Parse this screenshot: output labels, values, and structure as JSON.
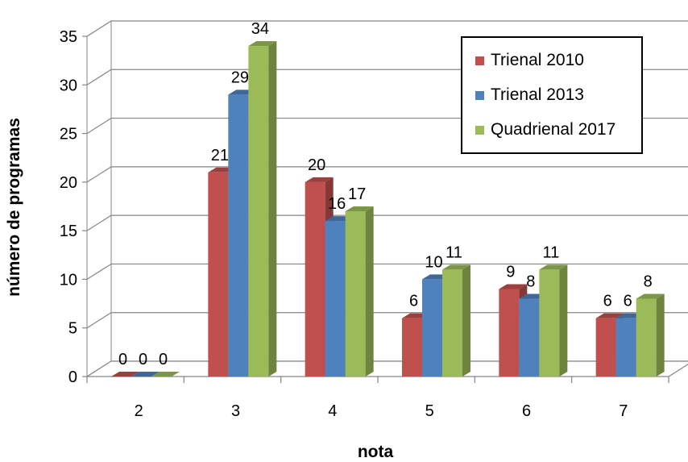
{
  "chart_data": {
    "type": "bar",
    "xlabel": "nota",
    "ylabel": "número de programas",
    "categories": [
      "2",
      "3",
      "4",
      "5",
      "6",
      "7"
    ],
    "ylim": [
      0,
      35
    ],
    "yticks": [
      "0",
      "5",
      "10",
      "15",
      "20",
      "25",
      "30",
      "35"
    ],
    "grid": true,
    "legend_position": "top-right",
    "series": [
      {
        "name": "Trienal 2010",
        "color": "#C0504D",
        "values": [
          0,
          21,
          20,
          6,
          9,
          6
        ]
      },
      {
        "name": "Trienal 2013",
        "color": "#4F81BD",
        "values": [
          0,
          29,
          16,
          10,
          8,
          6
        ]
      },
      {
        "name": "Quadrienal 2017",
        "color": "#9BBB59",
        "values": [
          0,
          34,
          17,
          11,
          11,
          8
        ]
      }
    ]
  }
}
